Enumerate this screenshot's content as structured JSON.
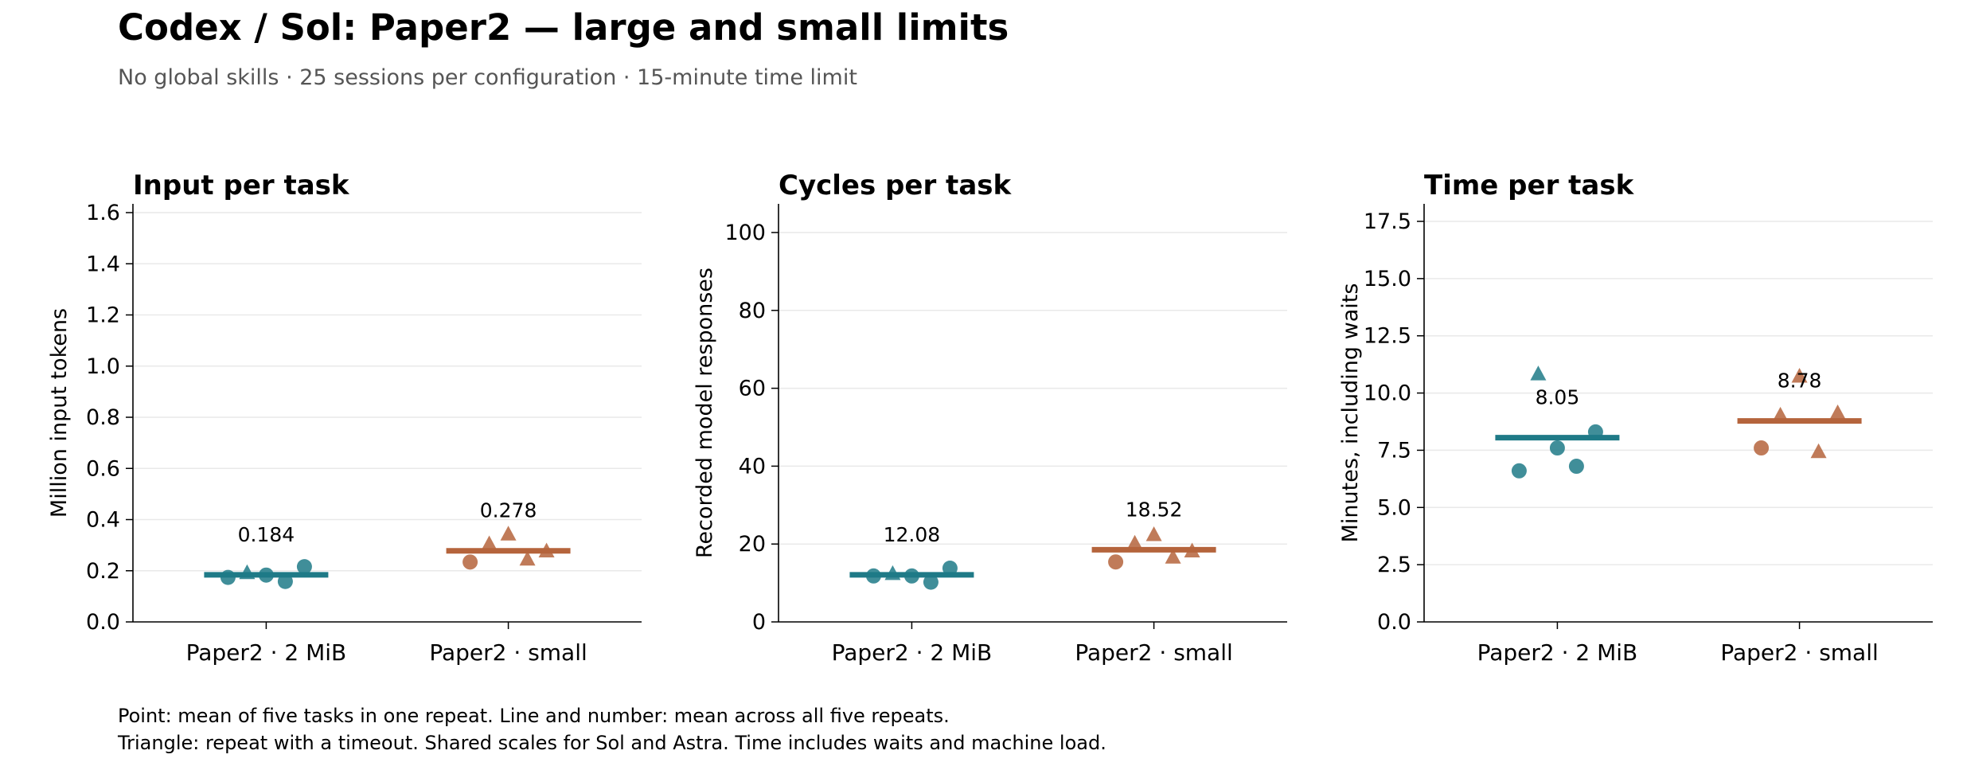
{
  "title": "Codex / Sol: Paper2 — large and small limits",
  "subtitle": "No global skills · 25 sessions per configuration · 15-minute time limit",
  "notes": [
    "Point: mean of five tasks in one repeat. Line and number: mean across all five repeats.",
    "Triangle: repeat with a timeout. Shared scales for Sol and Astra. Time includes waits and machine load."
  ],
  "colors": {
    "large": "#1f7a87",
    "small": "#b5643c"
  },
  "chart_data": [
    {
      "type": "scatter",
      "title": "Input per task",
      "ylabel": "Million input tokens",
      "categories": [
        "Paper2 · 2 MiB",
        "Paper2 · small"
      ],
      "ylim": [
        0,
        1.6
      ],
      "yticks": [
        "0.0",
        "0.2",
        "0.4",
        "0.6",
        "0.8",
        "1.0",
        "1.2",
        "1.4",
        "1.6"
      ],
      "ytick_values": [
        0,
        0.2,
        0.4,
        0.6,
        0.8,
        1.0,
        1.2,
        1.4,
        1.6
      ],
      "grid": true,
      "series": [
        {
          "category": "Paper2 · 2 MiB",
          "color": "#1f7a87",
          "mean": 0.184,
          "mean_label": "0.184",
          "points": [
            {
              "value": 0.174,
              "marker": "circle"
            },
            {
              "value": 0.189,
              "marker": "triangle"
            },
            {
              "value": 0.183,
              "marker": "circle"
            },
            {
              "value": 0.158,
              "marker": "circle"
            },
            {
              "value": 0.216,
              "marker": "circle"
            }
          ]
        },
        {
          "category": "Paper2 · small",
          "color": "#b5643c",
          "mean": 0.278,
          "mean_label": "0.278",
          "points": [
            {
              "value": 0.234,
              "marker": "circle"
            },
            {
              "value": 0.302,
              "marker": "triangle"
            },
            {
              "value": 0.34,
              "marker": "triangle"
            },
            {
              "value": 0.242,
              "marker": "triangle"
            },
            {
              "value": 0.274,
              "marker": "triangle"
            }
          ]
        }
      ]
    },
    {
      "type": "scatter",
      "title": "Cycles per task",
      "ylabel": "Recorded model responses",
      "categories": [
        "Paper2 · 2 MiB",
        "Paper2 · small"
      ],
      "ylim": [
        0,
        100
      ],
      "yticks": [
        "0",
        "20",
        "40",
        "60",
        "80",
        "100"
      ],
      "ytick_values": [
        0,
        20,
        40,
        60,
        80,
        100
      ],
      "grid": true,
      "series": [
        {
          "category": "Paper2 · 2 MiB",
          "color": "#1f7a87",
          "mean": 12.08,
          "mean_label": "12.08",
          "points": [
            {
              "value": 11.8,
              "marker": "circle"
            },
            {
              "value": 12.2,
              "marker": "triangle"
            },
            {
              "value": 11.8,
              "marker": "circle"
            },
            {
              "value": 10.2,
              "marker": "circle"
            },
            {
              "value": 13.8,
              "marker": "circle"
            }
          ]
        },
        {
          "category": "Paper2 · small",
          "color": "#b5643c",
          "mean": 18.52,
          "mean_label": "18.52",
          "points": [
            {
              "value": 15.4,
              "marker": "circle"
            },
            {
              "value": 20.0,
              "marker": "triangle"
            },
            {
              "value": 22.2,
              "marker": "triangle"
            },
            {
              "value": 16.4,
              "marker": "triangle"
            },
            {
              "value": 18.0,
              "marker": "triangle"
            }
          ]
        }
      ]
    },
    {
      "type": "scatter",
      "title": "Time per task",
      "ylabel": "Minutes, including waits",
      "categories": [
        "Paper2 · 2 MiB",
        "Paper2 · small"
      ],
      "ylim": [
        0,
        17.5
      ],
      "yticks": [
        "0.0",
        "2.5",
        "5.0",
        "7.5",
        "10.0",
        "12.5",
        "15.0",
        "17.5"
      ],
      "ytick_values": [
        0,
        2.5,
        5.0,
        7.5,
        10.0,
        12.5,
        15.0,
        17.5
      ],
      "grid": true,
      "series": [
        {
          "category": "Paper2 · 2 MiB",
          "color": "#1f7a87",
          "mean": 8.05,
          "mean_label": "8.05",
          "points": [
            {
              "value": 6.6,
              "marker": "circle"
            },
            {
              "value": 10.8,
              "marker": "triangle"
            },
            {
              "value": 7.6,
              "marker": "circle"
            },
            {
              "value": 6.8,
              "marker": "circle"
            },
            {
              "value": 8.3,
              "marker": "circle"
            }
          ]
        },
        {
          "category": "Paper2 · small",
          "color": "#b5643c",
          "mean": 8.78,
          "mean_label": "8.78",
          "points": [
            {
              "value": 7.6,
              "marker": "circle"
            },
            {
              "value": 9.0,
              "marker": "triangle"
            },
            {
              "value": 10.7,
              "marker": "triangle"
            },
            {
              "value": 7.4,
              "marker": "triangle"
            },
            {
              "value": 9.1,
              "marker": "triangle"
            }
          ]
        }
      ]
    }
  ]
}
